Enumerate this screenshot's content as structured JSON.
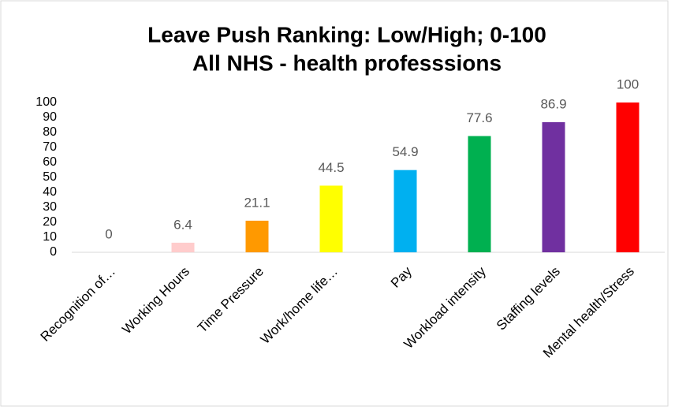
{
  "chart_data": {
    "type": "bar",
    "title": [
      "Leave Push Ranking: Low/High; 0-100",
      "All NHS - health professsions"
    ],
    "categories": [
      "Recognition of…",
      "Working Hours",
      "Time Pressure",
      "Work/home life…",
      "Pay",
      "Workload intensity",
      "Staffing levels",
      "Mental health/Stress"
    ],
    "values": [
      0,
      6.4,
      21.1,
      44.5,
      54.9,
      77.6,
      86.9,
      100
    ],
    "colors": [
      "#c00000",
      "#ffcccc",
      "#ff9900",
      "#ffff00",
      "#00b0f0",
      "#00b050",
      "#7030a0",
      "#ff0000"
    ],
    "ylim": [
      0,
      100
    ],
    "yticks": [
      0,
      10,
      20,
      30,
      40,
      50,
      60,
      70,
      80,
      90,
      100
    ],
    "grid": false
  }
}
